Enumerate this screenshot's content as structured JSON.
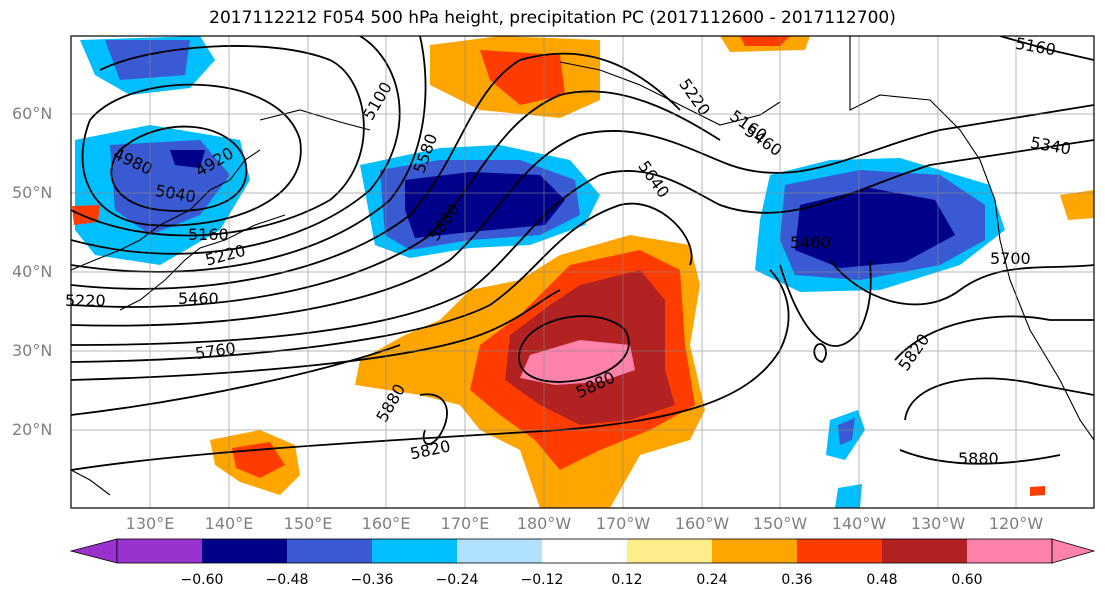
{
  "title": "2017112212 F054 500 hPa height, precipitation PC (2017112600 - 2017112700)",
  "lat_labels": [
    "60°N",
    "50°N",
    "40°N",
    "30°N",
    "20°N"
  ],
  "lon_labels": [
    "130°E",
    "140°E",
    "150°E",
    "160°E",
    "170°E",
    "180°W",
    "170°W",
    "160°W",
    "150°W",
    "140°W",
    "130°W",
    "120°W"
  ],
  "colorbar": {
    "colors": [
      "#9a32cd",
      "#00008b",
      "#3a5ad3",
      "#00bfff",
      "#b0e2ff",
      "#ffffff",
      "#ffec8b",
      "#ffa500",
      "#ff3c00",
      "#b22222",
      "#ff82ab"
    ],
    "ticks": [
      "−0.60",
      "−0.48",
      "−0.36",
      "−0.24",
      "−0.12",
      "0.12",
      "0.24",
      "0.36",
      "0.48",
      "0.60"
    ]
  },
  "contour_labels": [
    "4980",
    "5040",
    "5100",
    "5160",
    "5220",
    "5460",
    "5760",
    "5880",
    "5820",
    "5580",
    "5880",
    "5640",
    "5220",
    "5160",
    "5460",
    "5400",
    "5340",
    "5700",
    "5820",
    "5880",
    "5880",
    "5160",
    "4920",
    "5220"
  ]
}
